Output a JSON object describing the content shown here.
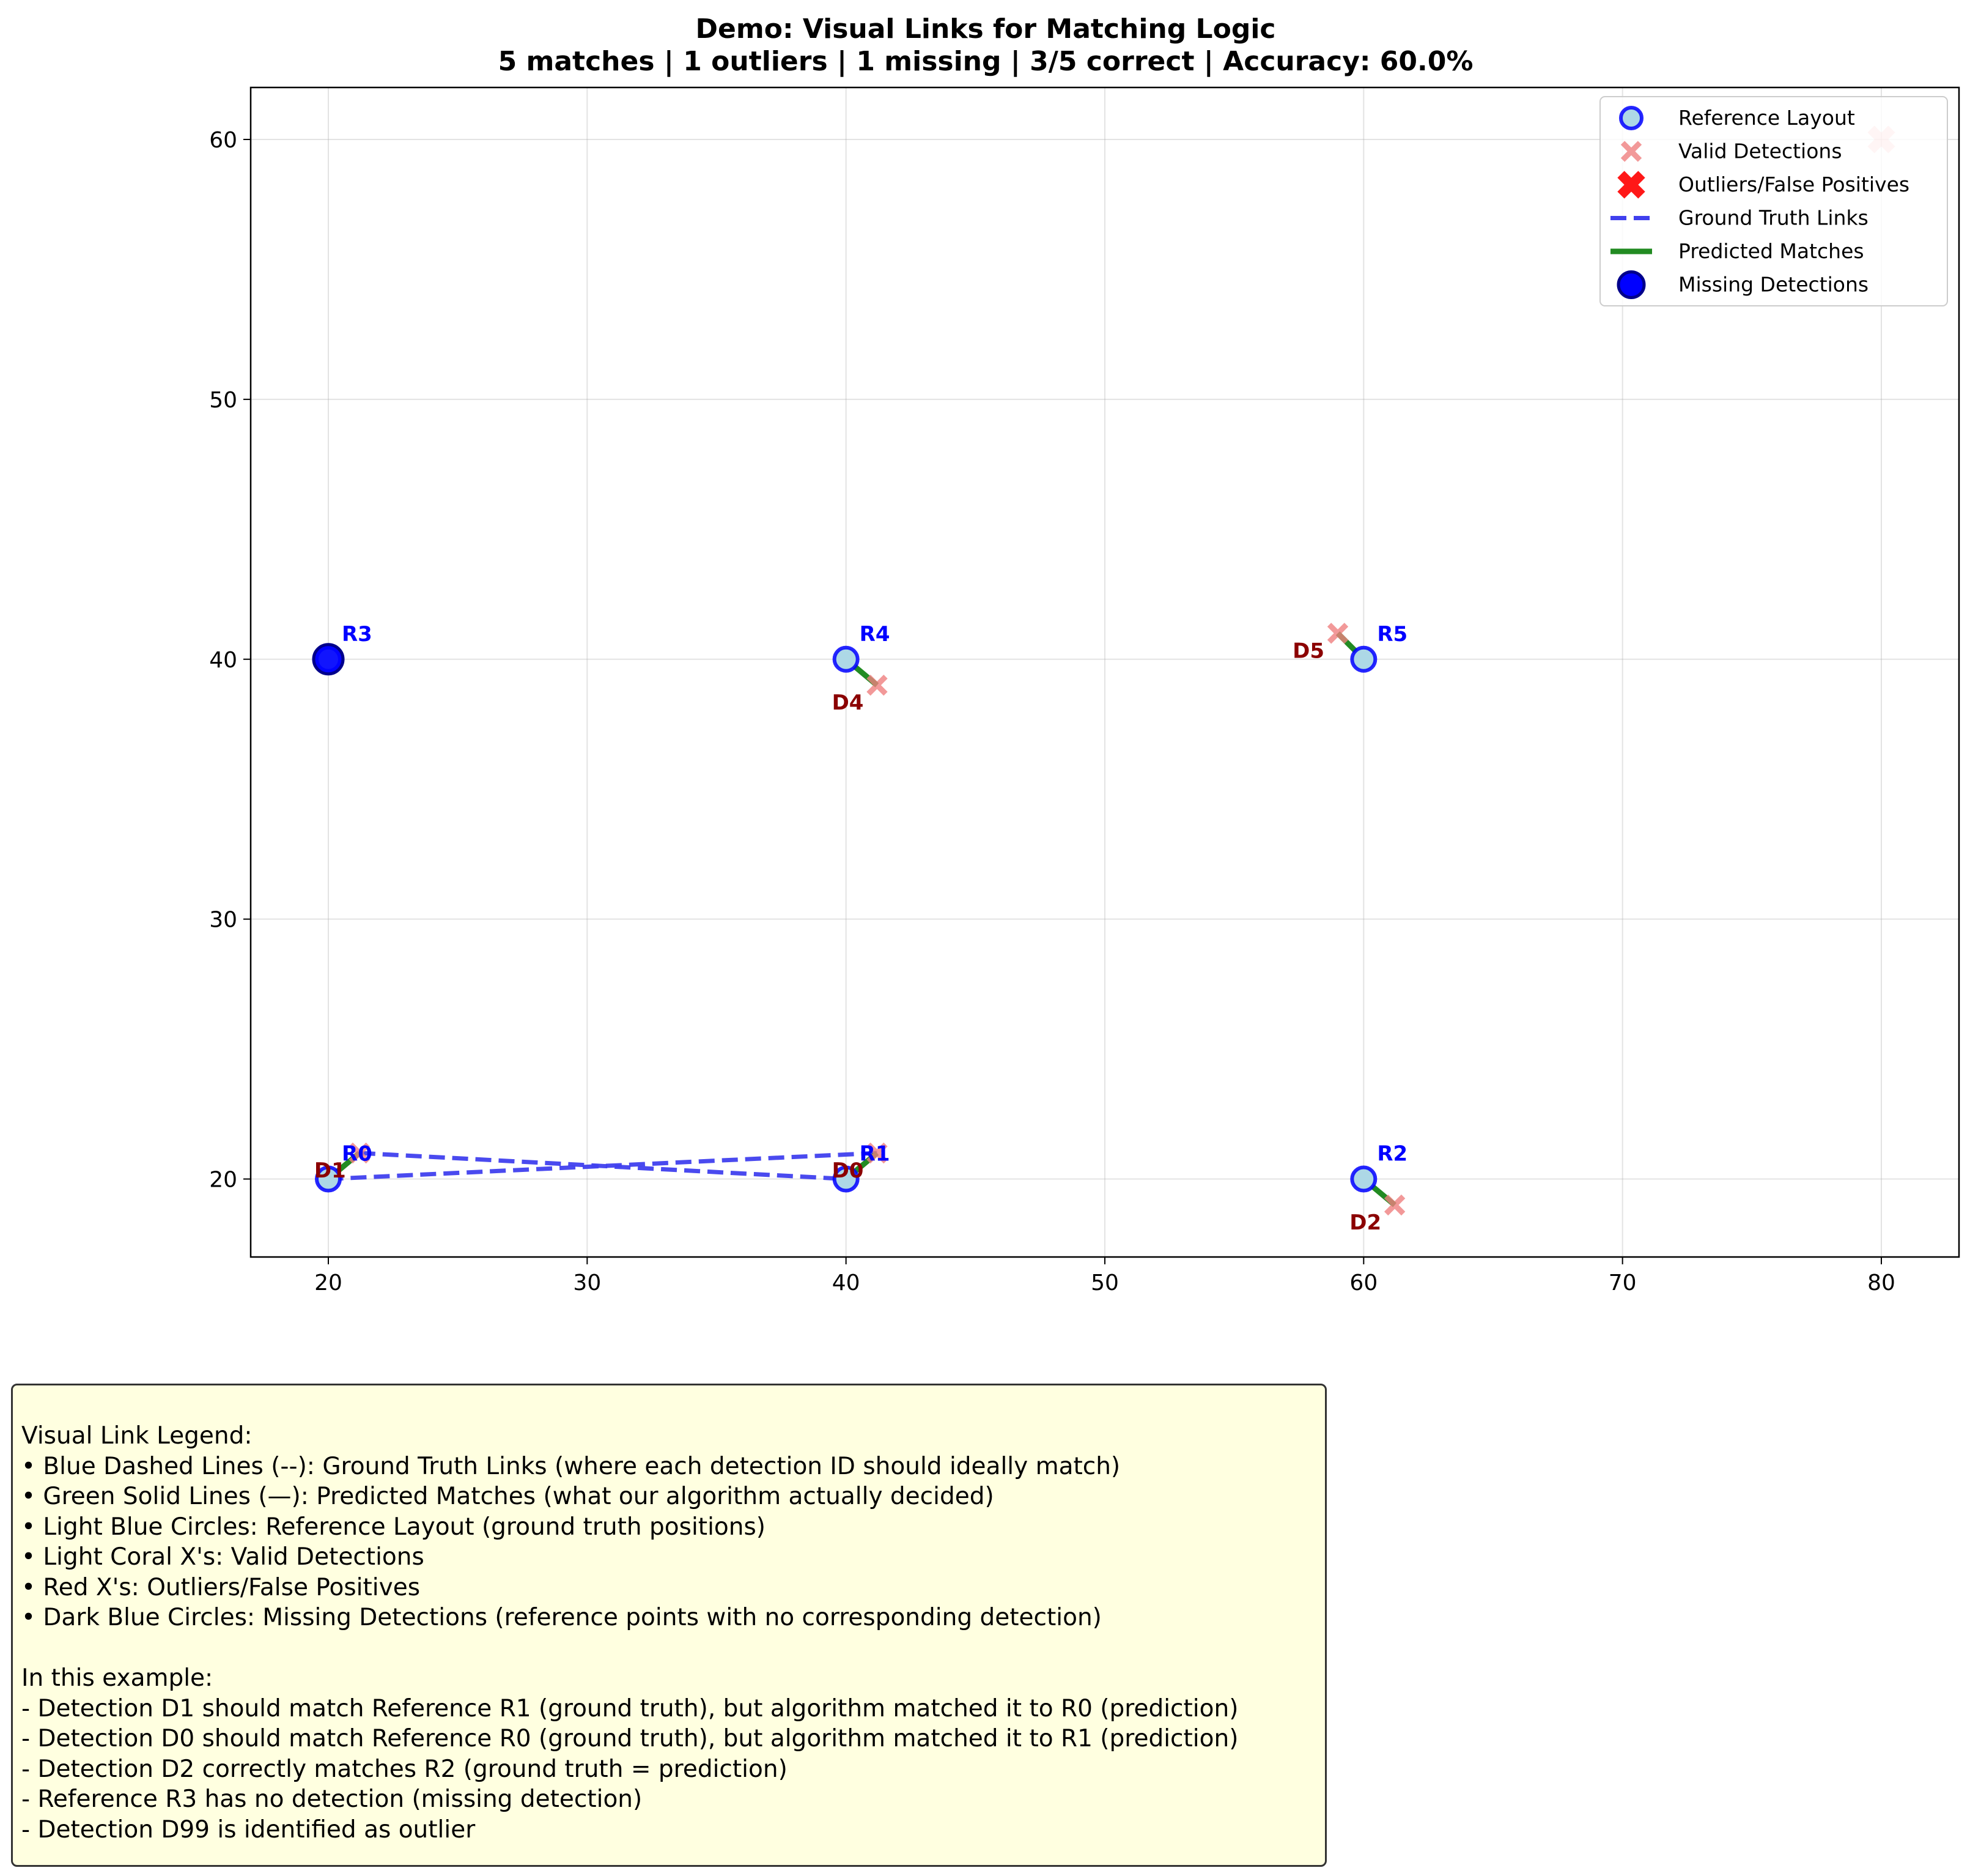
{
  "chart_data": {
    "type": "scatter",
    "title": "Demo: Visual Links for Matching Logic",
    "subtitle": "5 matches | 1 outliers | 1 missing | 3/5 correct | Accuracy: 60.0%",
    "xlim": [
      17,
      83
    ],
    "ylim": [
      17,
      62
    ],
    "x_ticks": [
      20,
      30,
      40,
      50,
      60,
      70,
      80
    ],
    "y_ticks": [
      20,
      30,
      40,
      50,
      60
    ],
    "grid": true,
    "legend_position": "top-right",
    "colors": {
      "reference_fill": "#add8e6",
      "reference_edge": "#0000ff",
      "valid_detection": "#f08080",
      "outlier": "#ff0000",
      "ground_truth_link": "#4040ee",
      "predicted_match": "#228b22",
      "missing_fill": "#0000ff",
      "missing_edge": "#00008b",
      "ref_label": "#0000ff",
      "det_label": "#8b0000"
    },
    "reference_points": [
      {
        "id": "R0",
        "x": 20,
        "y": 20
      },
      {
        "id": "R1",
        "x": 40,
        "y": 20
      },
      {
        "id": "R2",
        "x": 60,
        "y": 20
      },
      {
        "id": "R3",
        "x": 20,
        "y": 40
      },
      {
        "id": "R4",
        "x": 40,
        "y": 40
      },
      {
        "id": "R5",
        "x": 60,
        "y": 40
      }
    ],
    "valid_detections": [
      {
        "id": "D0",
        "x": 41.2,
        "y": 21
      },
      {
        "id": "D1",
        "x": 21.2,
        "y": 21
      },
      {
        "id": "D2",
        "x": 61.2,
        "y": 19
      },
      {
        "id": "D4",
        "x": 41.2,
        "y": 39
      },
      {
        "id": "D5",
        "x": 59,
        "y": 41
      }
    ],
    "outliers": [
      {
        "id": "D99",
        "x": 80,
        "y": 60
      }
    ],
    "missing_detections": [
      {
        "ref": "R3",
        "x": 20,
        "y": 40
      }
    ],
    "ground_truth_links": [
      {
        "det": "D1",
        "ref": "R1",
        "from": [
          21.2,
          21
        ],
        "to": [
          40,
          20
        ]
      },
      {
        "det": "D0",
        "ref": "R0",
        "from": [
          41.2,
          21
        ],
        "to": [
          20,
          20
        ]
      }
    ],
    "predicted_matches": [
      {
        "det": "D1",
        "ref": "R0",
        "from": [
          21.2,
          21
        ],
        "to": [
          20,
          20
        ]
      },
      {
        "det": "D0",
        "ref": "R1",
        "from": [
          41.2,
          21
        ],
        "to": [
          40,
          20
        ]
      },
      {
        "det": "D2",
        "ref": "R2",
        "from": [
          61.2,
          19
        ],
        "to": [
          60,
          20
        ]
      },
      {
        "det": "D4",
        "ref": "R4",
        "from": [
          41.2,
          39
        ],
        "to": [
          40,
          40
        ]
      },
      {
        "det": "D5",
        "ref": "R5",
        "from": [
          59,
          41
        ],
        "to": [
          60,
          40
        ]
      }
    ],
    "legend": [
      "Reference Layout",
      "Valid Detections",
      "Outliers/False Positives",
      "Ground Truth Links",
      "Predicted Matches",
      "Missing Detections"
    ]
  },
  "notes": {
    "heading": "Visual Link Legend:",
    "items": [
      "• Blue Dashed Lines (--): Ground Truth Links (where each detection ID should ideally match)",
      "• Green Solid Lines (—): Predicted Matches (what our algorithm actually decided)",
      "• Light Blue Circles: Reference Layout (ground truth positions)",
      "• Light Coral X's: Valid Detections",
      "• Red X's: Outliers/False Positives",
      "• Dark Blue Circles: Missing Detections (reference points with no corresponding detection)"
    ],
    "example_heading": "In this example:",
    "examples": [
      "- Detection D1 should match Reference R1 (ground truth), but algorithm matched it to R0 (prediction)",
      "- Detection D0 should match Reference R0 (ground truth), but algorithm matched it to R1 (prediction)",
      "- Detection D2 correctly matches R2 (ground truth = prediction)",
      "- Reference R3 has no detection (missing detection)",
      "- Detection D99 is identified as outlier"
    ]
  }
}
